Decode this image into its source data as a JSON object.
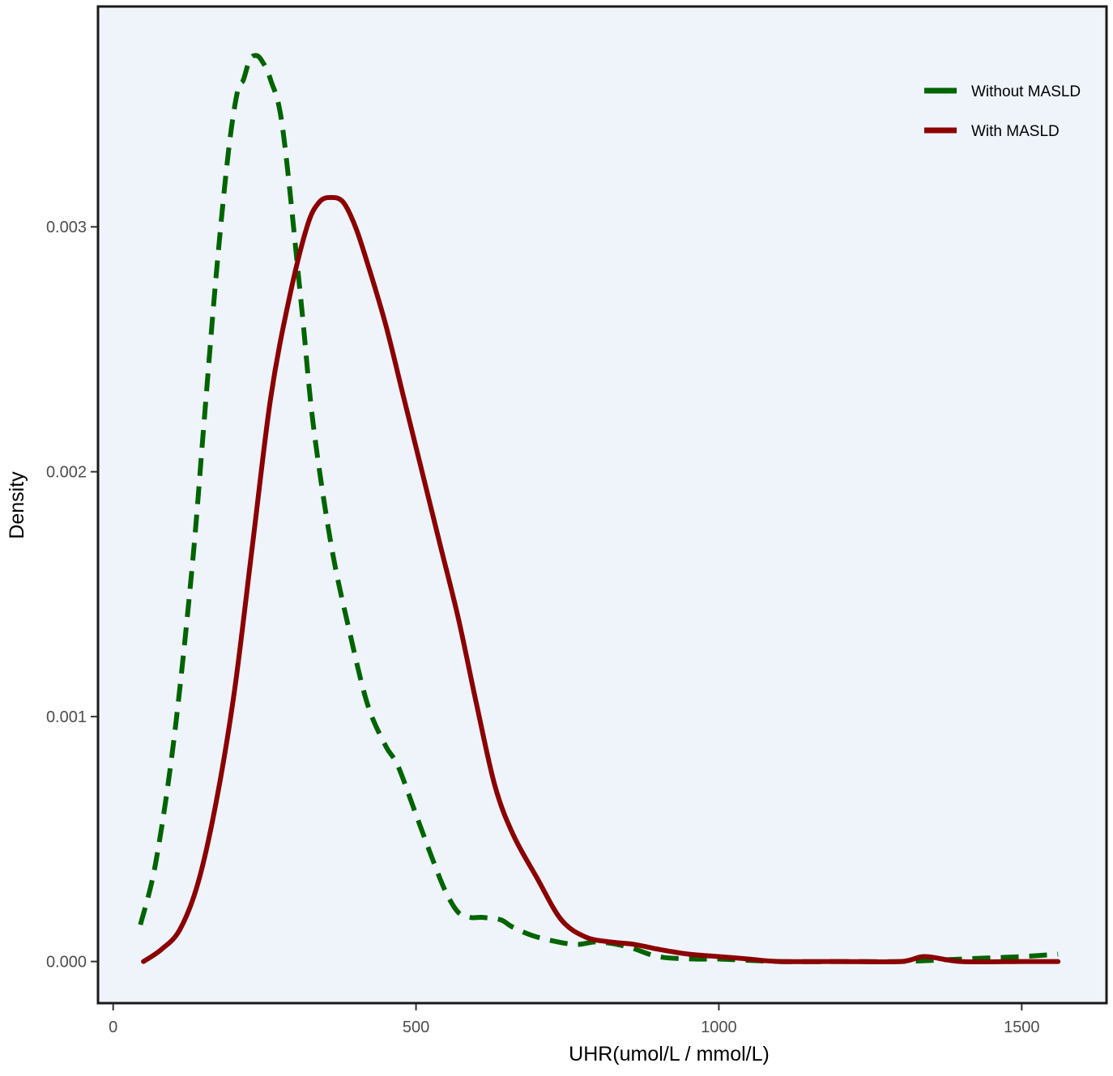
{
  "chart_data": {
    "type": "line",
    "title": "",
    "xlabel": "UHR(umol/L / mmol/L)",
    "ylabel": "Density",
    "xlim": [
      -25,
      1640
    ],
    "ylim": [
      -0.00017,
      0.0039
    ],
    "xticks": [
      0,
      500,
      1000,
      1500
    ],
    "xtick_labels": [
      "0",
      "500",
      "1000",
      "1500"
    ],
    "yticks": [
      0.0,
      0.001,
      0.002,
      0.003
    ],
    "ytick_labels": [
      "0.000",
      "0.001",
      "0.002",
      "0.003"
    ],
    "grid": false,
    "legend_position": "top-right",
    "background_color": "#eff4fb",
    "series": [
      {
        "name": "Without MASLD",
        "color": "#006400",
        "line_style": "dashed",
        "x": [
          45,
          70,
          100,
          130,
          150,
          170,
          190,
          205,
          215,
          225,
          235,
          245,
          260,
          280,
          310,
          330,
          360,
          390,
          420,
          450,
          470,
          500,
          530,
          550,
          570,
          590,
          610,
          640,
          660,
          700,
          760,
          800,
          850,
          900,
          960,
          1000,
          1100,
          1200,
          1300,
          1400,
          1500,
          1560
        ],
        "y": [
          0.00015,
          0.0004,
          0.0009,
          0.0016,
          0.0022,
          0.0028,
          0.0033,
          0.00355,
          0.0036,
          0.00368,
          0.0037,
          0.00368,
          0.0036,
          0.0034,
          0.0027,
          0.0022,
          0.0017,
          0.00135,
          0.00105,
          0.00088,
          0.0008,
          0.0006,
          0.0004,
          0.00028,
          0.0002,
          0.00018,
          0.00018,
          0.00017,
          0.00014,
          0.0001,
          7e-05,
          8e-05,
          6e-05,
          2e-05,
          1e-05,
          1e-05,
          0.0,
          0.0,
          0.0,
          1e-05,
          2e-05,
          3e-05
        ]
      },
      {
        "name": "With MASLD",
        "color": "#8b0000",
        "line_style": "solid",
        "x": [
          50,
          80,
          110,
          140,
          170,
          200,
          230,
          260,
          290,
          320,
          340,
          360,
          380,
          400,
          420,
          450,
          480,
          510,
          540,
          570,
          600,
          630,
          660,
          700,
          740,
          780,
          820,
          860,
          900,
          950,
          1000,
          1050,
          1100,
          1200,
          1300,
          1340,
          1400,
          1500,
          1560
        ],
        "y": [
          0.0,
          5e-05,
          0.00013,
          0.00032,
          0.00065,
          0.0011,
          0.0017,
          0.0023,
          0.0027,
          0.003,
          0.0031,
          0.00312,
          0.0031,
          0.003,
          0.00285,
          0.0026,
          0.0023,
          0.002,
          0.0017,
          0.0014,
          0.00105,
          0.00072,
          0.00052,
          0.00034,
          0.00017,
          0.0001,
          8e-05,
          7e-05,
          5e-05,
          3e-05,
          2e-05,
          1e-05,
          0.0,
          0.0,
          0.0,
          2e-05,
          0.0,
          0.0,
          0.0
        ]
      }
    ]
  }
}
